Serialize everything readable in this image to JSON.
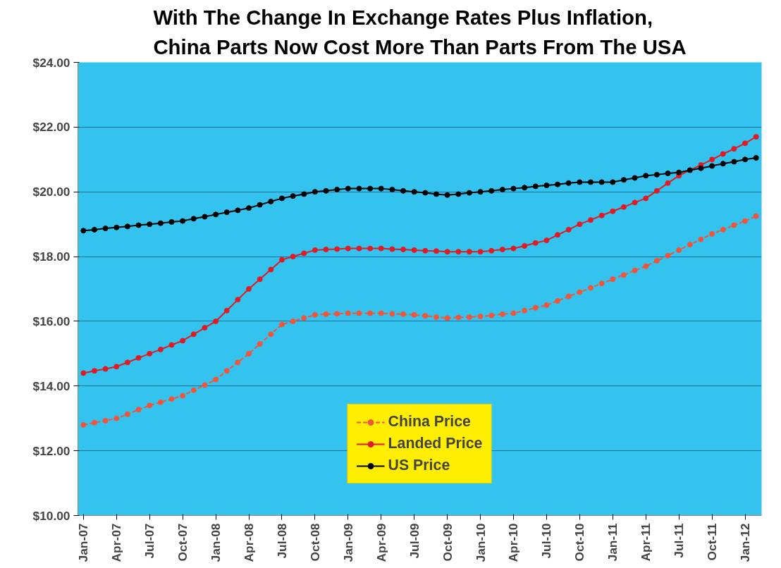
{
  "chart_data": {
    "type": "line",
    "title": "With The Change In Exchange Rates Plus Inflation,\nChina Parts Now Cost More Than Parts From The USA",
    "categories": [
      "Jan-07",
      null,
      null,
      "Apr-07",
      null,
      null,
      "Jul-07",
      null,
      null,
      "Oct-07",
      null,
      null,
      "Jan-08",
      null,
      null,
      "Apr-08",
      null,
      null,
      "Jul-08",
      null,
      null,
      "Oct-08",
      null,
      null,
      "Jan-09",
      null,
      null,
      "Apr-09",
      null,
      null,
      "Jul-09",
      null,
      null,
      "Oct-09",
      null,
      null,
      "Jan-10",
      null,
      null,
      "Apr-10",
      null,
      null,
      "Jul-10",
      null,
      null,
      "Oct-10",
      null,
      null,
      "Jan-11",
      null,
      null,
      "Apr-11",
      null,
      null,
      "Jul-11",
      null,
      null,
      "Oct-11",
      null,
      null,
      "Jan-12",
      null
    ],
    "series": [
      {
        "name": "China Price",
        "color": "#f2553a",
        "line_style": "dashed",
        "marker": "circle",
        "values": [
          12.8,
          12.87,
          12.93,
          13.0,
          13.13,
          13.27,
          13.4,
          13.5,
          13.6,
          13.7,
          13.87,
          14.03,
          14.2,
          14.47,
          14.73,
          15.0,
          15.3,
          15.6,
          15.9,
          16.0,
          16.1,
          16.2,
          16.22,
          16.23,
          16.25,
          16.25,
          16.25,
          16.25,
          16.23,
          16.22,
          16.2,
          16.17,
          16.13,
          16.1,
          16.12,
          16.13,
          16.15,
          16.18,
          16.22,
          16.25,
          16.33,
          16.42,
          16.5,
          16.63,
          16.77,
          16.9,
          17.03,
          17.17,
          17.3,
          17.43,
          17.57,
          17.7,
          17.87,
          18.03,
          18.2,
          18.37,
          18.53,
          18.7,
          18.83,
          18.97,
          19.1,
          19.25
        ]
      },
      {
        "name": "Landed Price",
        "color": "#e01b24",
        "line_style": "solid",
        "marker": "circle",
        "values": [
          14.4,
          14.47,
          14.53,
          14.6,
          14.73,
          14.87,
          15.0,
          15.13,
          15.27,
          15.4,
          15.6,
          15.8,
          16.0,
          16.33,
          16.67,
          17.0,
          17.3,
          17.6,
          17.9,
          18.0,
          18.1,
          18.2,
          18.22,
          18.23,
          18.25,
          18.25,
          18.25,
          18.25,
          18.23,
          18.22,
          18.2,
          18.18,
          18.17,
          18.15,
          18.15,
          18.15,
          18.15,
          18.18,
          18.22,
          18.25,
          18.33,
          18.42,
          18.5,
          18.67,
          18.83,
          19.0,
          19.13,
          19.27,
          19.4,
          19.53,
          19.67,
          19.8,
          20.03,
          20.27,
          20.5,
          20.67,
          20.83,
          21.0,
          21.17,
          21.33,
          21.5,
          21.7
        ]
      },
      {
        "name": "US Price",
        "color": "#000000",
        "line_style": "solid",
        "marker": "circle",
        "values": [
          18.8,
          18.83,
          18.87,
          18.9,
          18.93,
          18.97,
          19.0,
          19.03,
          19.07,
          19.1,
          19.17,
          19.23,
          19.3,
          19.37,
          19.43,
          19.5,
          19.6,
          19.7,
          19.8,
          19.87,
          19.93,
          20.0,
          20.03,
          20.07,
          20.1,
          20.1,
          20.1,
          20.1,
          20.07,
          20.03,
          20.0,
          19.97,
          19.93,
          19.9,
          19.93,
          19.97,
          20.0,
          20.03,
          20.07,
          20.1,
          20.13,
          20.17,
          20.2,
          20.23,
          20.27,
          20.3,
          20.3,
          20.3,
          20.3,
          20.37,
          20.43,
          20.5,
          20.53,
          20.57,
          20.6,
          20.67,
          20.73,
          20.8,
          20.87,
          20.93,
          21.0,
          21.05
        ]
      }
    ],
    "ylim": [
      10,
      24
    ],
    "yticks": [
      {
        "value": 10,
        "label": "$10.00"
      },
      {
        "value": 12,
        "label": "$12.00"
      },
      {
        "value": 14,
        "label": "$14.00"
      },
      {
        "value": 16,
        "label": "$16.00"
      },
      {
        "value": 18,
        "label": "$18.00"
      },
      {
        "value": 20,
        "label": "$20.00"
      },
      {
        "value": 22,
        "label": "$22.00"
      },
      {
        "value": 24,
        "label": "$24.00"
      }
    ],
    "grid": "y",
    "legend": "bottom"
  }
}
